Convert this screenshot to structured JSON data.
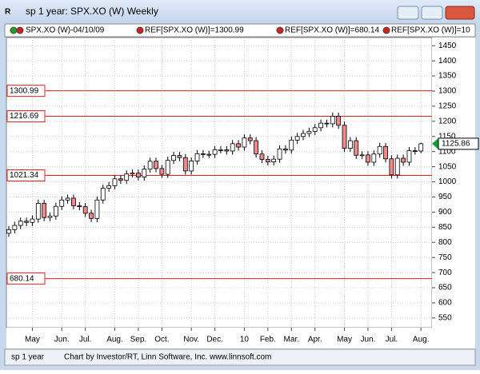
{
  "window": {
    "title": "sp 1 year: SPX.XO (W) Weekly",
    "legend": [
      "SPX.XO (W)-04/10/09",
      "REF[SPX.XO (W)]=1300.99",
      "REF[SPX.XO (W)]=680.14",
      "REF[SPX.XO (W)]=10"
    ],
    "status": [
      "sp 1 year",
      "Chart by Investor/RT, Linn Software, Inc. www.linnsoft.com"
    ]
  },
  "chart_data": {
    "type": "candlestick",
    "categories": [
      null,
      null,
      null,
      null,
      "May",
      null,
      null,
      null,
      null,
      "Jun.",
      null,
      null,
      null,
      "Jul.",
      null,
      null,
      null,
      null,
      "Aug.",
      null,
      null,
      null,
      "Sep.",
      null,
      null,
      null,
      "Oct.",
      null,
      null,
      null,
      null,
      "Nov.",
      null,
      null,
      null,
      "Dec.",
      null,
      null,
      null,
      null,
      "10",
      null,
      null,
      null,
      "Feb.",
      null,
      null,
      null,
      "Mar.",
      null,
      null,
      null,
      "Apr.",
      null,
      null,
      null,
      null,
      "May",
      null,
      null,
      null,
      "Jun.",
      null,
      null,
      null,
      "Jul.",
      null,
      null,
      null,
      null,
      "Aug."
    ],
    "open": [
      830,
      842,
      856,
      870,
      866,
      877,
      929,
      882,
      887,
      919,
      940,
      946,
      921,
      918,
      896,
      879,
      940,
      979,
      987,
      1010,
      1005,
      1026,
      1029,
      1016,
      1042,
      1068,
      1044,
      1025,
      1071,
      1087,
      1080,
      1036,
      1069,
      1093,
      1091,
      1091,
      1106,
      1106,
      1102,
      1126,
      1115,
      1145,
      1136,
      1092,
      1074,
      1066,
      1075,
      1109,
      1105,
      1138,
      1150,
      1160,
      1167,
      1179,
      1194,
      1192,
      1217,
      1187,
      1111,
      1136,
      1088,
      1089,
      1065,
      1092,
      1117,
      1076,
      1023,
      1078,
      1065,
      1103,
      1102
    ],
    "high": [
      854,
      868,
      882,
      882,
      889,
      941,
      941,
      899,
      931,
      952,
      958,
      958,
      933,
      930,
      908,
      952,
      991,
      999,
      1022,
      1022,
      1038,
      1041,
      1041,
      1054,
      1080,
      1080,
      1056,
      1083,
      1099,
      1099,
      1092,
      1081,
      1105,
      1105,
      1103,
      1118,
      1118,
      1118,
      1138,
      1138,
      1157,
      1157,
      1148,
      1104,
      1086,
      1087,
      1121,
      1121,
      1150,
      1162,
      1172,
      1179,
      1191,
      1206,
      1206,
      1229,
      1229,
      1199,
      1148,
      1148,
      1101,
      1101,
      1104,
      1129,
      1129,
      1088,
      1090,
      1090,
      1115,
      1115,
      1130
    ],
    "low": [
      818,
      830,
      844,
      854,
      854,
      865,
      870,
      870,
      875,
      907,
      928,
      909,
      906,
      884,
      867,
      867,
      928,
      967,
      975,
      993,
      993,
      1014,
      1004,
      1004,
      1030,
      1032,
      1013,
      1013,
      1059,
      1068,
      1024,
      1024,
      1057,
      1079,
      1079,
      1079,
      1094,
      1090,
      1090,
      1103,
      1103,
      1124,
      1080,
      1062,
      1054,
      1054,
      1063,
      1093,
      1093,
      1126,
      1138,
      1148,
      1155,
      1167,
      1180,
      1180,
      1175,
      1099,
      1099,
      1076,
      1076,
      1053,
      1053,
      1080,
      1064,
      1011,
      1011,
      1053,
      1053,
      1090,
      1094
    ],
    "close": [
      842,
      856,
      870,
      866,
      877,
      929,
      882,
      887,
      919,
      940,
      946,
      921,
      918,
      896,
      879,
      940,
      979,
      987,
      1010,
      1005,
      1026,
      1029,
      1016,
      1042,
      1068,
      1044,
      1025,
      1071,
      1087,
      1080,
      1036,
      1069,
      1093,
      1091,
      1091,
      1106,
      1106,
      1102,
      1126,
      1115,
      1145,
      1136,
      1092,
      1074,
      1066,
      1075,
      1109,
      1105,
      1138,
      1150,
      1160,
      1167,
      1179,
      1194,
      1192,
      1217,
      1187,
      1111,
      1136,
      1088,
      1089,
      1065,
      1092,
      1117,
      1076,
      1023,
      1078,
      1065,
      1103,
      1102,
      1125.86
    ],
    "up_color": "#ffffff",
    "down_color": "#f08a8a",
    "hlines": [
      1300.99,
      1216.69,
      1021.34,
      680.14
    ],
    "hline_color": "#e02020",
    "last_value": 1125.86,
    "last_color": "#10a030",
    "ylim": [
      518,
      1477
    ],
    "yticks": [
      550,
      600,
      650,
      700,
      750,
      800,
      850,
      900,
      950,
      1000,
      1050,
      1100,
      1150,
      1200,
      1250,
      1300,
      1350,
      1400,
      1450
    ],
    "grid": true
  }
}
